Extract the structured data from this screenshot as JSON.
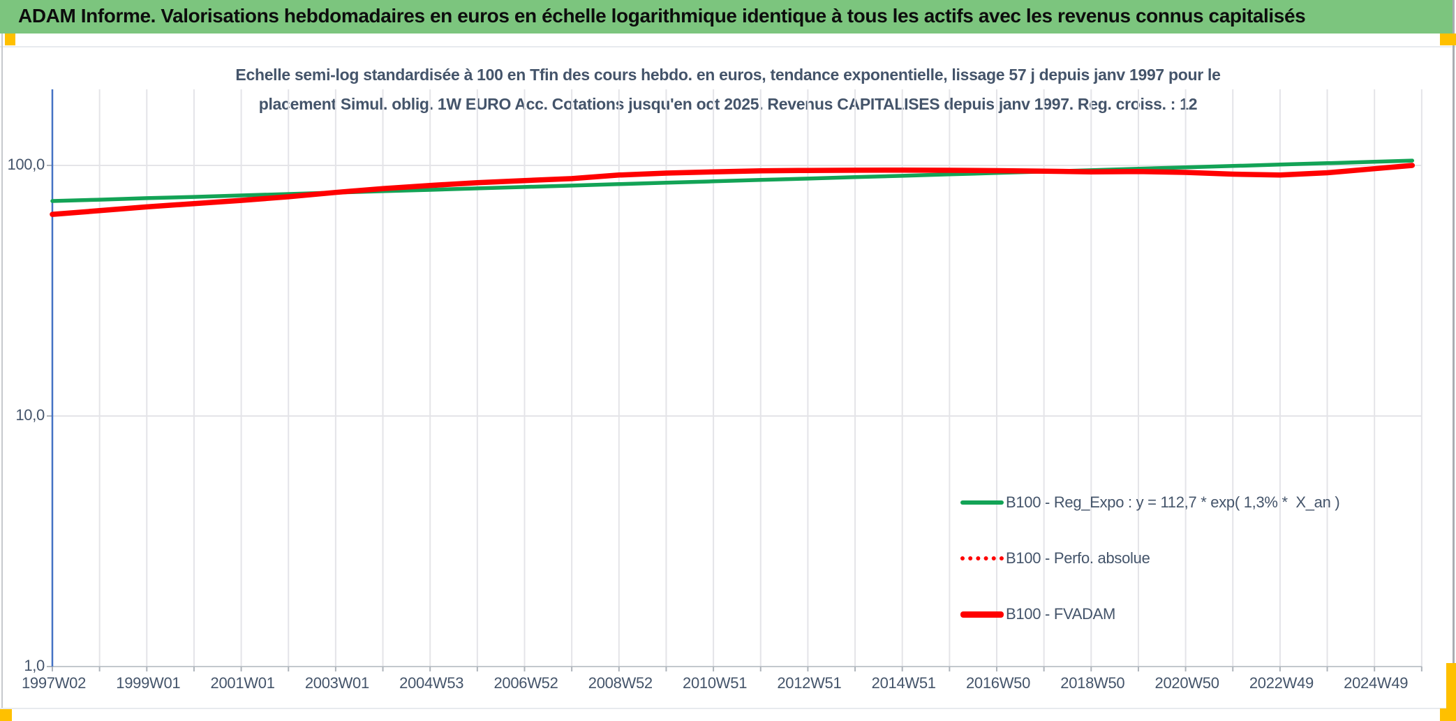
{
  "header": {
    "title": "ADAM Informe. Valorisations hebdomadaires en euros en échelle logarithmique identique à tous les actifs avec les revenus connus capitalisés"
  },
  "colors": {
    "header_bg": "#7CC57E",
    "accent_orange": "#FFC000",
    "green_line": "#13A356",
    "red_line": "#FF0000",
    "axis_text": "#44546A",
    "gridline": "#e4e4e8",
    "y_axis_line": "#4472C4",
    "x_axis_line": "#c3c8cd"
  },
  "chart_data": {
    "type": "line",
    "title_line1": "Echelle semi-log standardisée à 100 en Tfin des cours hebdo. en euros, tendance exponentielle, lissage 57 j depuis janv 1997 pour le",
    "title_line2": "placement Simul. oblig. 1W EURO Acc. Cotations jusqu'en oct 2025. Revenus CAPITALISES depuis janv 1997. Reg. croiss. : 12",
    "y_scale": "log",
    "ylim": [
      1,
      200
    ],
    "grid": "on",
    "legend_position": "inside-right-lower",
    "y_ticks": [
      100,
      10,
      1
    ],
    "y_tick_labels": [
      "100,0",
      "10,0",
      "1,0"
    ],
    "x_tick_labels": [
      "1997W02",
      "1999W01",
      "2001W01",
      "2003W01",
      "2004W53",
      "2006W52",
      "2008W52",
      "2010W51",
      "2012W51",
      "2014W51",
      "2016W50",
      "2018W50",
      "2020W50",
      "2022W49",
      "2024W49"
    ],
    "x_years": [
      1997,
      1998,
      1999,
      2000,
      2001,
      2002,
      2003,
      2004,
      2005,
      2006,
      2007,
      2008,
      2009,
      2010,
      2011,
      2012,
      2013,
      2014,
      2015,
      2016,
      2017,
      2018,
      2019,
      2020,
      2021,
      2022,
      2023,
      2024,
      2025,
      2025.8
    ],
    "series": [
      {
        "name": "B100 - Reg_Expo : y = 112,7 * exp( 1,3% *  X_an )",
        "color": "#13A356",
        "style": "solid",
        "stroke_width": 5.5,
        "values": [
          72.1,
          73.0,
          74.0,
          74.9,
          75.9,
          76.9,
          77.9,
          78.9,
          79.9,
          81.0,
          82.0,
          83.1,
          84.2,
          85.3,
          86.4,
          87.5,
          88.6,
          89.8,
          90.9,
          92.1,
          93.3,
          94.5,
          95.7,
          97.0,
          98.2,
          99.5,
          100.8,
          102.1,
          103.4,
          104.5
        ]
      },
      {
        "name": "B100 - Perfo. absolue",
        "color": "#FF0000",
        "style": "dotted",
        "stroke_width": 3.5,
        "values": [
          63.8,
          66.0,
          68.3,
          70.4,
          72.5,
          75.0,
          78.0,
          80.8,
          83.2,
          85.3,
          87.0,
          88.6,
          91.5,
          93.2,
          94.3,
          95.2,
          95.5,
          95.7,
          95.8,
          95.6,
          95.3,
          94.9,
          94.3,
          94.5,
          93.8,
          92.3,
          91.6,
          93.5,
          97.0,
          100.0
        ]
      },
      {
        "name": "B100 - FVADAM",
        "color": "#FF0000",
        "style": "solid",
        "stroke_width": 7.5,
        "values": [
          63.8,
          66.0,
          68.3,
          70.4,
          72.5,
          75.0,
          78.0,
          80.8,
          83.2,
          85.3,
          87.0,
          88.6,
          91.5,
          93.2,
          94.3,
          95.2,
          95.5,
          95.7,
          95.8,
          95.6,
          95.3,
          94.9,
          94.3,
          94.5,
          93.8,
          92.3,
          91.6,
          93.5,
          97.0,
          100.0
        ]
      }
    ]
  }
}
